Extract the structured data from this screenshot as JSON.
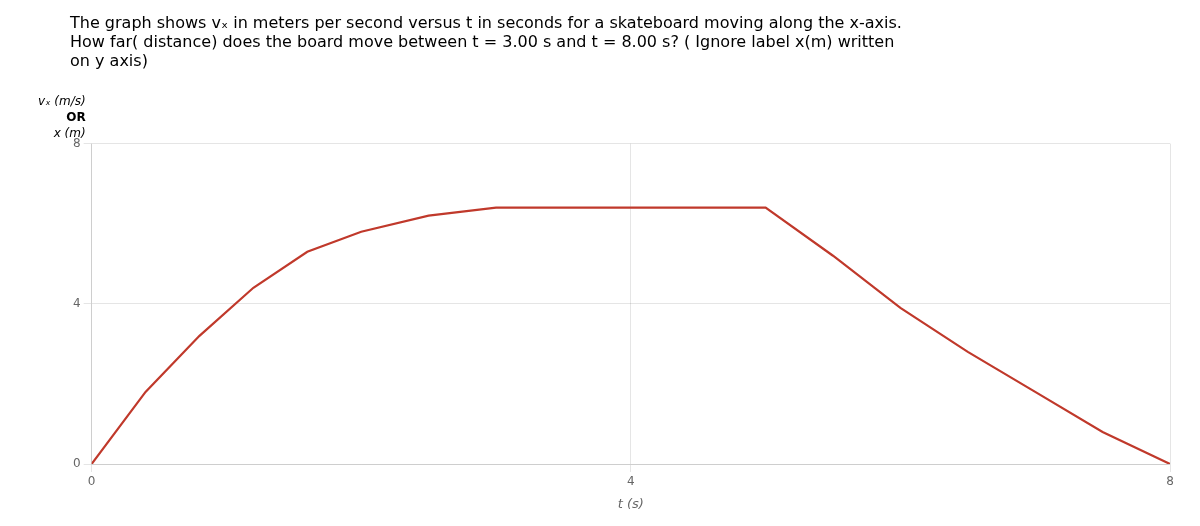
{
  "chart_data": {
    "type": "line",
    "title": "The graph shows vₓ in meters per second versus t in seconds for a skateboard moving along the x-axis.\nHow far( distance) does the board move between t = 3.00 s and t = 8.00 s? ( Ignore label x(m) written\non y axis)",
    "x_label": "t (s)",
    "y_label": [
      "vₓ (m/s)",
      "OR",
      "x (m)"
    ],
    "x": [
      0,
      0.4,
      0.8,
      1.2,
      1.6,
      2.0,
      2.5,
      3.0,
      3.5,
      4.0,
      4.5,
      5.0,
      5.5,
      6.0,
      6.5,
      7.0,
      7.5,
      8.0
    ],
    "values": [
      0,
      1.8,
      3.2,
      4.4,
      5.3,
      5.8,
      6.2,
      6.4,
      6.4,
      6.4,
      6.4,
      6.4,
      5.2,
      3.9,
      2.8,
      1.8,
      0.8,
      0.0
    ],
    "color": "#c0392b",
    "xlim": [
      0,
      8
    ],
    "ylim": [
      0,
      8
    ],
    "xticks": [
      0,
      4,
      8
    ],
    "yticks": [
      0,
      4,
      8
    ],
    "grid": true
  }
}
